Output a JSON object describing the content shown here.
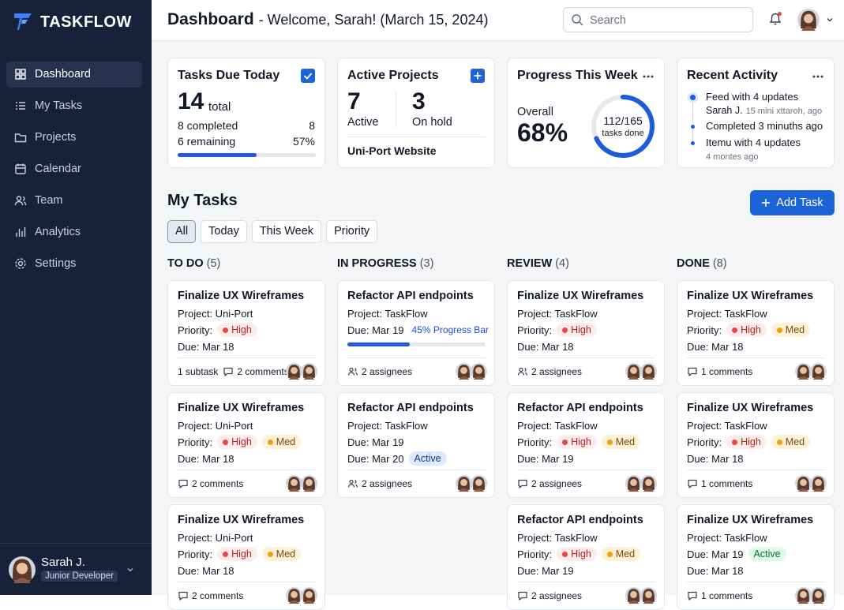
{
  "sidebar": {
    "brand": "TASKFLOW",
    "nav": [
      {
        "label": "Dashboard",
        "selected": true
      },
      {
        "label": "My Tasks"
      },
      {
        "label": "Projects"
      },
      {
        "label": "Calendar"
      },
      {
        "label": "Team"
      },
      {
        "label": "Analytics"
      },
      {
        "label": "Settings"
      }
    ],
    "user": {
      "name": "Sarah J.",
      "role": "Junior Developer"
    }
  },
  "header": {
    "title": "Dashboard",
    "subtitle": "- Welcome, Sarah! (March 15, 2024)",
    "search_placeholder": "Search"
  },
  "stats": {
    "tasks_due": {
      "title": "Tasks Due Today",
      "total": "14",
      "total_label": "total",
      "completed_label": "8 completed",
      "completed": "8",
      "remaining_label": "6 remaining",
      "percent": 57,
      "percent_label": "57%"
    },
    "projects": {
      "title": "Active Projects",
      "active": "7",
      "active_label": "Active",
      "on_hold": "3",
      "on_hold_label": "On hold",
      "project": "Uni-Port Website"
    },
    "progress": {
      "title": "Progress This Week",
      "overall_label": "Overall",
      "percent": 68,
      "percent_label": "68%",
      "ratio": "112/165",
      "ratio_label": "tasks done"
    },
    "activity": {
      "title": "Recent Activity",
      "items": [
        {
          "text": "Feed with 4 updates",
          "user": "Sarah J.",
          "time": "15 mini xttaroh, ago"
        },
        {
          "text": "Completed 3 minuths ago"
        },
        {
          "text": "Itemu with 4 updates",
          "time": "4 montes ago"
        }
      ]
    }
  },
  "tasks": {
    "title": "My Tasks",
    "add_button": "Add Task",
    "tabs": [
      {
        "label": "All",
        "selected": true
      },
      {
        "label": "Today"
      },
      {
        "label": "This Week"
      },
      {
        "label": "Priority"
      }
    ],
    "columns": [
      {
        "name": "TO DO",
        "count": "(5)",
        "cards": [
          {
            "title": "Finalize UX Wireframes",
            "lines": [
              {
                "text": "Project: Uni-Port"
              },
              {
                "text": "Priority:",
                "tags": [
                  {
                    "text": "High",
                    "color": "#b42318",
                    "bg": "#fdecec",
                    "dot": "#ef4444"
                  }
                ]
              },
              {
                "text": "Due: Mar 18"
              }
            ],
            "footer": [
              {
                "text": "1 subtask"
              },
              {
                "icon": "comment",
                "text": "2 comments"
              }
            ]
          },
          {
            "title": "Finalize UX Wireframes",
            "lines": [
              {
                "text": "Project: Uni-Port"
              },
              {
                "text": "Priority:",
                "tags": [
                  {
                    "text": "High",
                    "color": "#b42318",
                    "bg": "#fdecec",
                    "dot": "#ef4444"
                  },
                  {
                    "text": "Med",
                    "color": "#7a4a00",
                    "bg": "#fdf1d8",
                    "dot": "#f59e0b"
                  }
                ]
              },
              {
                "text": "Due: Mar 18"
              }
            ],
            "footer": [
              {
                "icon": "comment",
                "text": "2 comments"
              }
            ]
          },
          {
            "title": "Finalize UX Wireframes",
            "lines": [
              {
                "text": "Project: Uni-Port"
              },
              {
                "text": "Priority:",
                "tags": [
                  {
                    "text": "High",
                    "color": "#b42318",
                    "bg": "#fdecec",
                    "dot": "#ef4444"
                  },
                  {
                    "text": "Med",
                    "color": "#7a4a00",
                    "bg": "#fdf1d8",
                    "dot": "#f59e0b"
                  }
                ]
              },
              {
                "text": "Due: Mar 18"
              }
            ],
            "footer": [
              {
                "icon": "comment",
                "text": "2 comments"
              }
            ]
          }
        ]
      },
      {
        "name": "IN PROGRESS",
        "count": "(3)",
        "cards": [
          {
            "title": "Refactor API endpoints",
            "lines": [
              {
                "text": "Project: TaskFlow"
              },
              {
                "text": "Due: Mar 19",
                "note": "45% Progress Bar"
              }
            ],
            "progress": 45,
            "footer": [
              {
                "icon": "people",
                "text": "2 assignees"
              }
            ]
          },
          {
            "title": "Refactor API endpoints",
            "lines": [
              {
                "text": "Project: TaskFlow"
              },
              {
                "text": "Due: Mar 19"
              },
              {
                "text": "Due: Mar 20",
                "tags": [
                  {
                    "text": "Active",
                    "color": "#1e3a8a",
                    "bg": "#dbeafe"
                  }
                ]
              }
            ],
            "footer": [
              {
                "icon": "people",
                "text": "2 assignees"
              }
            ]
          }
        ]
      },
      {
        "name": "REVIEW",
        "count": "(4)",
        "cards": [
          {
            "title": "Finalize UX Wireframes",
            "lines": [
              {
                "text": "Project: TaskFlow"
              },
              {
                "text": "Priority:",
                "tags": [
                  {
                    "text": "High",
                    "color": "#b42318",
                    "bg": "#fdecec",
                    "dot": "#ef4444"
                  }
                ]
              },
              {
                "text": "Due: Mar 18"
              }
            ],
            "footer": [
              {
                "icon": "people",
                "text": "2 assignees"
              }
            ]
          },
          {
            "title": "Refactor API endpoints",
            "lines": [
              {
                "text": "Project: TaskFlow"
              },
              {
                "text": "Priority:",
                "tags": [
                  {
                    "text": "High",
                    "color": "#b42318",
                    "bg": "#fdecec",
                    "dot": "#ef4444"
                  },
                  {
                    "text": "Med",
                    "color": "#7a4a00",
                    "bg": "#fdf1d8",
                    "dot": "#f59e0b"
                  }
                ]
              },
              {
                "text": "Due: Mar 19"
              }
            ],
            "footer": [
              {
                "icon": "comment",
                "text": "2 assignees"
              }
            ]
          },
          {
            "title": "Refactor API endpoints",
            "lines": [
              {
                "text": "Project: TaskFlow"
              },
              {
                "text": "Priority:",
                "tags": [
                  {
                    "text": "High",
                    "color": "#b42318",
                    "bg": "#fdecec",
                    "dot": "#ef4444"
                  },
                  {
                    "text": "Med",
                    "color": "#7a4a00",
                    "bg": "#fdf1d8",
                    "dot": "#f59e0b"
                  }
                ]
              },
              {
                "text": "Due: Mar 19"
              }
            ],
            "footer": [
              {
                "icon": "comment",
                "text": "2 assignees"
              }
            ]
          }
        ]
      },
      {
        "name": "DONE",
        "count": "(8)",
        "cards": [
          {
            "title": "Finalize UX Wireframes",
            "lines": [
              {
                "text": "Project: TaskFlow"
              },
              {
                "text": "Priority:",
                "tags": [
                  {
                    "text": "High",
                    "color": "#b42318",
                    "bg": "#fdecec",
                    "dot": "#ef4444"
                  },
                  {
                    "text": "Med",
                    "color": "#7a4a00",
                    "bg": "#fdf1d8",
                    "dot": "#f59e0b"
                  }
                ]
              },
              {
                "text": "Due: Mar 18"
              }
            ],
            "footer": [
              {
                "icon": "comment",
                "text": "1 comments"
              }
            ]
          },
          {
            "title": "Finalize UX Wireframes",
            "lines": [
              {
                "text": "Project: TaskFlow"
              },
              {
                "text": "Priority:",
                "tags": [
                  {
                    "text": "High",
                    "color": "#b42318",
                    "bg": "#fdecec",
                    "dot": "#ef4444"
                  },
                  {
                    "text": "Med",
                    "color": "#7a4a00",
                    "bg": "#fdf1d8",
                    "dot": "#f59e0b"
                  }
                ]
              },
              {
                "text": "Due: Mar 18"
              }
            ],
            "footer": [
              {
                "icon": "comment",
                "text": "1 comments"
              }
            ]
          },
          {
            "title": "Finalize UX Wireframes",
            "lines": [
              {
                "text": "Project: TaskFlow"
              },
              {
                "text": "Due: Mar 19",
                "tags": [
                  {
                    "text": "Active",
                    "color": "#166534",
                    "bg": "#dcfce7"
                  }
                ]
              },
              {
                "text": "Due: Mar 18"
              }
            ],
            "footer": [
              {
                "icon": "comment",
                "text": "1 comments"
              }
            ]
          }
        ]
      }
    ]
  }
}
